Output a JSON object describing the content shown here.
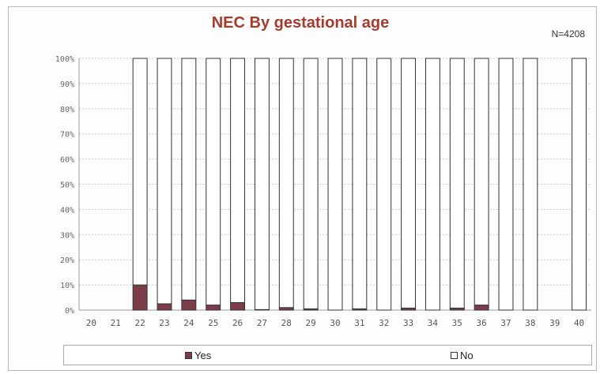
{
  "chart_data": {
    "type": "bar",
    "stacked": true,
    "normalized": true,
    "title": "NEC By gestational age",
    "annotation": "N=4208",
    "categories": [
      "20",
      "21",
      "22",
      "23",
      "24",
      "25",
      "26",
      "27",
      "28",
      "29",
      "30",
      "31",
      "32",
      "33",
      "34",
      "35",
      "36",
      "37",
      "38",
      "39",
      "40"
    ],
    "has_data": [
      false,
      false,
      true,
      true,
      true,
      true,
      true,
      true,
      true,
      true,
      true,
      true,
      true,
      true,
      true,
      true,
      true,
      true,
      true,
      false,
      true
    ],
    "series": [
      {
        "name": "Yes",
        "color": "#7d3c4b",
        "values": [
          0,
          0,
          10,
          2.5,
          4,
          2,
          3,
          0.2,
          1,
          0.5,
          0,
          0.5,
          0,
          0.8,
          0,
          0.8,
          2,
          0,
          0,
          0,
          0
        ]
      },
      {
        "name": "No",
        "color": "#ffffff",
        "values": [
          0,
          0,
          90,
          97.5,
          96,
          98,
          97,
          99.8,
          99,
          99.5,
          100,
          99.5,
          100,
          99.2,
          100,
          99.2,
          98,
          100,
          100,
          0,
          100
        ]
      }
    ],
    "ylim": [
      0,
      100
    ],
    "yticks": [
      "0%",
      "10%",
      "20%",
      "30%",
      "40%",
      "50%",
      "60%",
      "70%",
      "80%",
      "90%",
      "100%"
    ],
    "grid": true,
    "legend_position": "bottom",
    "title_color": "#a83a2e"
  }
}
